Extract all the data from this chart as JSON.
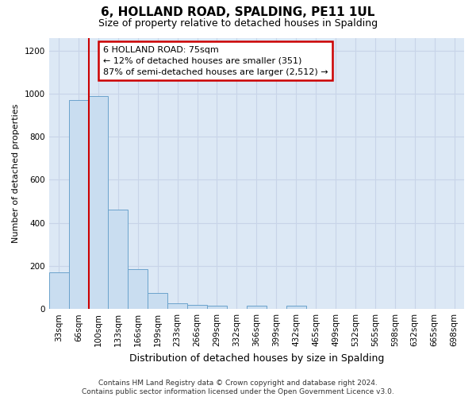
{
  "title": "6, HOLLAND ROAD, SPALDING, PE11 1UL",
  "subtitle": "Size of property relative to detached houses in Spalding",
  "xlabel": "Distribution of detached houses by size in Spalding",
  "ylabel": "Number of detached properties",
  "categories": [
    "33sqm",
    "66sqm",
    "100sqm",
    "133sqm",
    "166sqm",
    "199sqm",
    "233sqm",
    "266sqm",
    "299sqm",
    "332sqm",
    "366sqm",
    "399sqm",
    "432sqm",
    "465sqm",
    "499sqm",
    "532sqm",
    "565sqm",
    "598sqm",
    "632sqm",
    "665sqm",
    "698sqm"
  ],
  "values": [
    170,
    970,
    990,
    462,
    185,
    73,
    25,
    20,
    15,
    0,
    15,
    0,
    15,
    0,
    0,
    0,
    0,
    0,
    0,
    0,
    0
  ],
  "bar_color": "#c9ddf0",
  "bar_edge_color": "#6ba3cc",
  "property_line_x": 1.5,
  "annotation_line1": "6 HOLLAND ROAD: 75sqm",
  "annotation_line2": "← 12% of detached houses are smaller (351)",
  "annotation_line3": "87% of semi-detached houses are larger (2,512) →",
  "annotation_box_color": "#ffffff",
  "annotation_box_edge_color": "#cc0000",
  "vline_color": "#cc0000",
  "grid_color": "#c8d4e8",
  "plot_background": "#dce8f5",
  "fig_background": "#ffffff",
  "footer": "Contains HM Land Registry data © Crown copyright and database right 2024.\nContains public sector information licensed under the Open Government Licence v3.0.",
  "ylim": [
    0,
    1260
  ],
  "yticks": [
    0,
    200,
    400,
    600,
    800,
    1000,
    1200
  ],
  "title_fontsize": 11,
  "subtitle_fontsize": 9,
  "xlabel_fontsize": 9,
  "ylabel_fontsize": 8,
  "tick_fontsize": 7.5,
  "footer_fontsize": 6.5
}
